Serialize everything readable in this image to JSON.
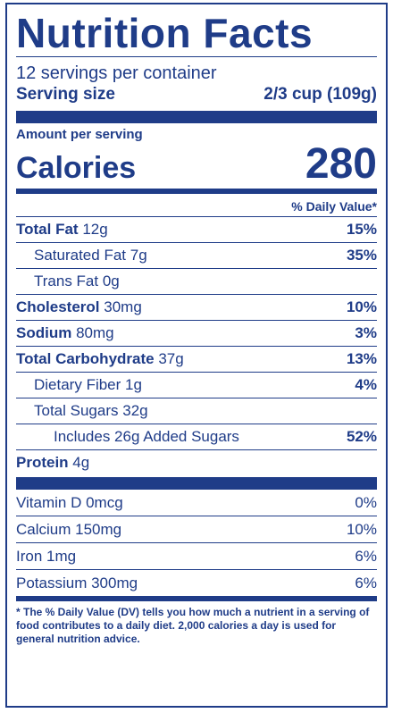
{
  "title": "Nutrition Facts",
  "servings_per_container": "12 servings per container",
  "serving_size": {
    "label": "Serving size",
    "value": "2/3 cup (109g)"
  },
  "amount_per_serving": "Amount per serving",
  "calories": {
    "label": "Calories",
    "value": "280"
  },
  "daily_value_header": "% Daily Value*",
  "nutrients": [
    {
      "name": "Total Fat",
      "amount": "12g",
      "dv": "15%"
    },
    {
      "name": "Saturated Fat",
      "amount": "7g",
      "dv": "35%"
    },
    {
      "name": "Trans Fat",
      "amount": "0g",
      "dv": ""
    },
    {
      "name": "Cholesterol",
      "amount": "30mg",
      "dv": "10%"
    },
    {
      "name": "Sodium",
      "amount": "80mg",
      "dv": "3%"
    },
    {
      "name": "Total Carbohydrate",
      "amount": "37g",
      "dv": "13%"
    },
    {
      "name": "Dietary Fiber",
      "amount": "1g",
      "dv": "4%"
    },
    {
      "name": "Total Sugars",
      "amount": "32g",
      "dv": ""
    },
    {
      "name": "Includes 26g Added Sugars",
      "amount": "",
      "dv": "52%"
    }
  ],
  "protein": {
    "name": "Protein",
    "amount": "4g"
  },
  "vitamins": [
    {
      "name": "Vitamin D 0mcg",
      "dv": "0%"
    },
    {
      "name": "Calcium 150mg",
      "dv": "10%"
    },
    {
      "name": "Iron 1mg",
      "dv": "6%"
    },
    {
      "name": "Potassium 300mg",
      "dv": "6%"
    }
  ],
  "footnote": "* The % Daily Value (DV) tells you how much a nutrient in a serving of food contributes to a daily diet. 2,000 calories a day is used for general nutrition advice.",
  "colors": {
    "ink": "#1f3c88",
    "background": "#ffffff"
  }
}
